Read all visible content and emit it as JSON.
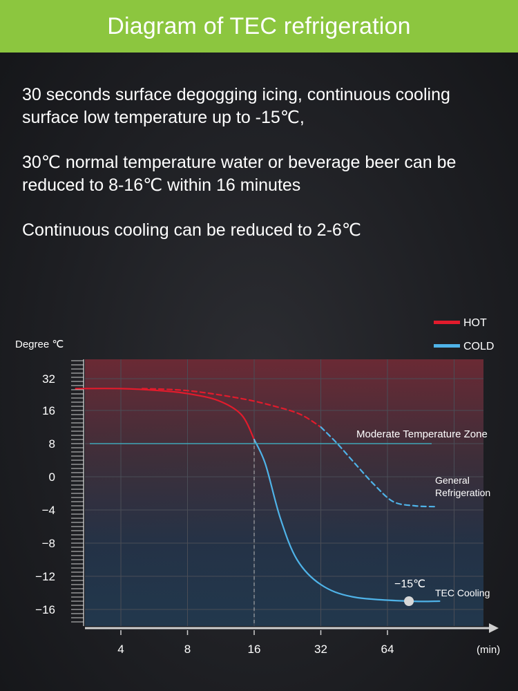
{
  "header": {
    "title": "Diagram of TEC refrigeration"
  },
  "description": {
    "paragraphs": [
      "30 seconds surface degogging icing, continuous cooling surface low temperature up to -15℃,",
      "30℃ normal temperature water or beverage beer can be reduced to 8-16℃ within 16 minutes",
      "Continuous cooling can be reduced to 2-6℃"
    ]
  },
  "colors": {
    "header_bg": "#8cc63f",
    "hot": "#e21b2c",
    "cold": "#4fb3e8",
    "zone_line": "#3ea6b8"
  },
  "chart_data": {
    "type": "line",
    "ylabel": "Degree ℃",
    "xlabel": "(min)",
    "x_ticks": [
      "4",
      "8",
      "16",
      "32",
      "64"
    ],
    "x_scale": "log2",
    "y_ticks": [
      32,
      16,
      8,
      0,
      -4,
      -8,
      -12,
      -16
    ],
    "legend": [
      {
        "name": "HOT",
        "color": "#e21b2c"
      },
      {
        "name": "COLD",
        "color": "#4fb3e8"
      }
    ],
    "legend_position": "top-right",
    "moderate_zone_value": 8,
    "series": [
      {
        "key": "hot_tec",
        "style": "solid",
        "color": "#e21b2c",
        "points": [
          [
            2.5,
            27
          ],
          [
            4,
            27
          ],
          [
            6,
            26
          ],
          [
            8,
            24.5
          ],
          [
            11,
            21
          ],
          [
            14,
            15
          ],
          [
            16,
            9
          ]
        ]
      },
      {
        "key": "cold_tec",
        "style": "solid",
        "color": "#4fb3e8",
        "points": [
          [
            16,
            9
          ],
          [
            18,
            3
          ],
          [
            21,
            -5
          ],
          [
            25,
            -10
          ],
          [
            32,
            -13
          ],
          [
            45,
            -14.5
          ],
          [
            80,
            -15
          ],
          [
            110,
            -15
          ]
        ]
      },
      {
        "key": "hot_general",
        "style": "dashed",
        "color": "#e21b2c",
        "points": [
          [
            5,
            27
          ],
          [
            8,
            26
          ],
          [
            14,
            22
          ],
          [
            20,
            18
          ],
          [
            26,
            15
          ],
          [
            32,
            12
          ]
        ]
      },
      {
        "key": "cold_general",
        "style": "dashed",
        "color": "#4fb3e8",
        "points": [
          [
            32,
            12
          ],
          [
            38,
            8
          ],
          [
            46,
            3
          ],
          [
            56,
            -1
          ],
          [
            68,
            -3
          ],
          [
            85,
            -3.5
          ],
          [
            105,
            -3.6
          ]
        ]
      }
    ],
    "annotations": {
      "zone": "Moderate Temperature Zone",
      "general": "General Refrigeration",
      "tec": "TEC Cooling",
      "min_point": "−15℃",
      "min_value": -15,
      "min_x": 80,
      "split_x": 16
    }
  }
}
